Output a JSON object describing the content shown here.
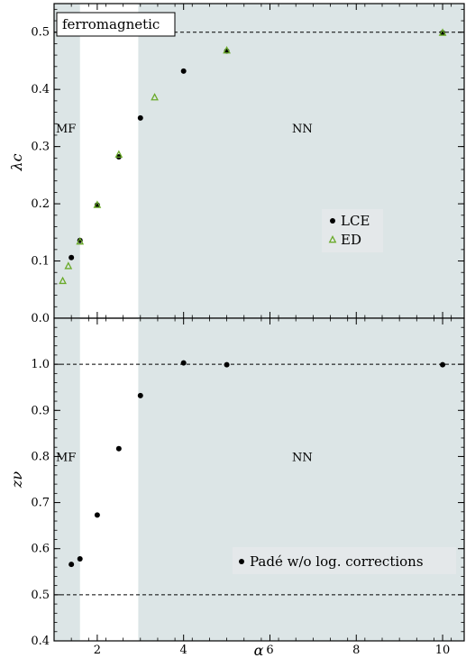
{
  "chart_data": [
    {
      "type": "scatter",
      "title": "",
      "xlabel": "",
      "ylabel": "λc",
      "xlim": [
        1,
        10.5
      ],
      "ylim": [
        0,
        0.55
      ],
      "yticks": [
        "0.0",
        "0.1",
        "0.2",
        "0.3",
        "0.4",
        "0.5"
      ],
      "xticks": [
        "2",
        "4",
        "6",
        "8",
        "10"
      ],
      "grid": false,
      "regions": [
        {
          "label": "MF",
          "from": 1,
          "to": 1.6,
          "color": "#dce5e6"
        },
        {
          "label": "NN",
          "from": 2.95,
          "to": 10.5,
          "color": "#dce5e6"
        }
      ],
      "reference_line": 0.5,
      "box_label": "ferromagnetic",
      "legend_position": "right",
      "series": [
        {
          "name": "LCE",
          "marker": "circle",
          "color": "#000000",
          "x": [
            1.4,
            1.6,
            2.0,
            2.5,
            3.0,
            4.0,
            5.0,
            10.0
          ],
          "y": [
            0.106,
            0.136,
            0.198,
            0.282,
            0.35,
            0.432,
            0.467,
            0.499
          ]
        },
        {
          "name": "ED",
          "marker": "triangle",
          "color": "#6aaa2a",
          "x": [
            1.2,
            1.33,
            1.6,
            2.0,
            2.5,
            3.33,
            5.0,
            10.0
          ],
          "y": [
            0.065,
            0.091,
            0.134,
            0.198,
            0.286,
            0.386,
            0.468,
            0.499
          ]
        }
      ]
    },
    {
      "type": "scatter",
      "title": "",
      "xlabel": "α",
      "ylabel": "zν",
      "xlim": [
        1,
        10.5
      ],
      "ylim": [
        0.4,
        1.1
      ],
      "yticks": [
        "0.4",
        "0.5",
        "0.6",
        "0.7",
        "0.8",
        "0.9",
        "1.0"
      ],
      "xticks": [
        "2",
        "4",
        "6",
        "8",
        "10"
      ],
      "grid": false,
      "regions": [
        {
          "label": "MF",
          "from": 1,
          "to": 1.6,
          "color": "#dce5e6"
        },
        {
          "label": "NN",
          "from": 2.95,
          "to": 10.5,
          "color": "#dce5e6"
        }
      ],
      "reference_lines": [
        1.0,
        0.5
      ],
      "legend_position": "bottom-right",
      "series": [
        {
          "name": "Padé w/o log. corrections",
          "marker": "circle",
          "color": "#000000",
          "x": [
            1.4,
            1.6,
            2.0,
            2.5,
            3.0,
            4.0,
            5.0,
            10.0
          ],
          "y": [
            0.566,
            0.578,
            0.673,
            0.817,
            0.932,
            1.003,
            0.999,
            0.999
          ]
        }
      ]
    }
  ]
}
